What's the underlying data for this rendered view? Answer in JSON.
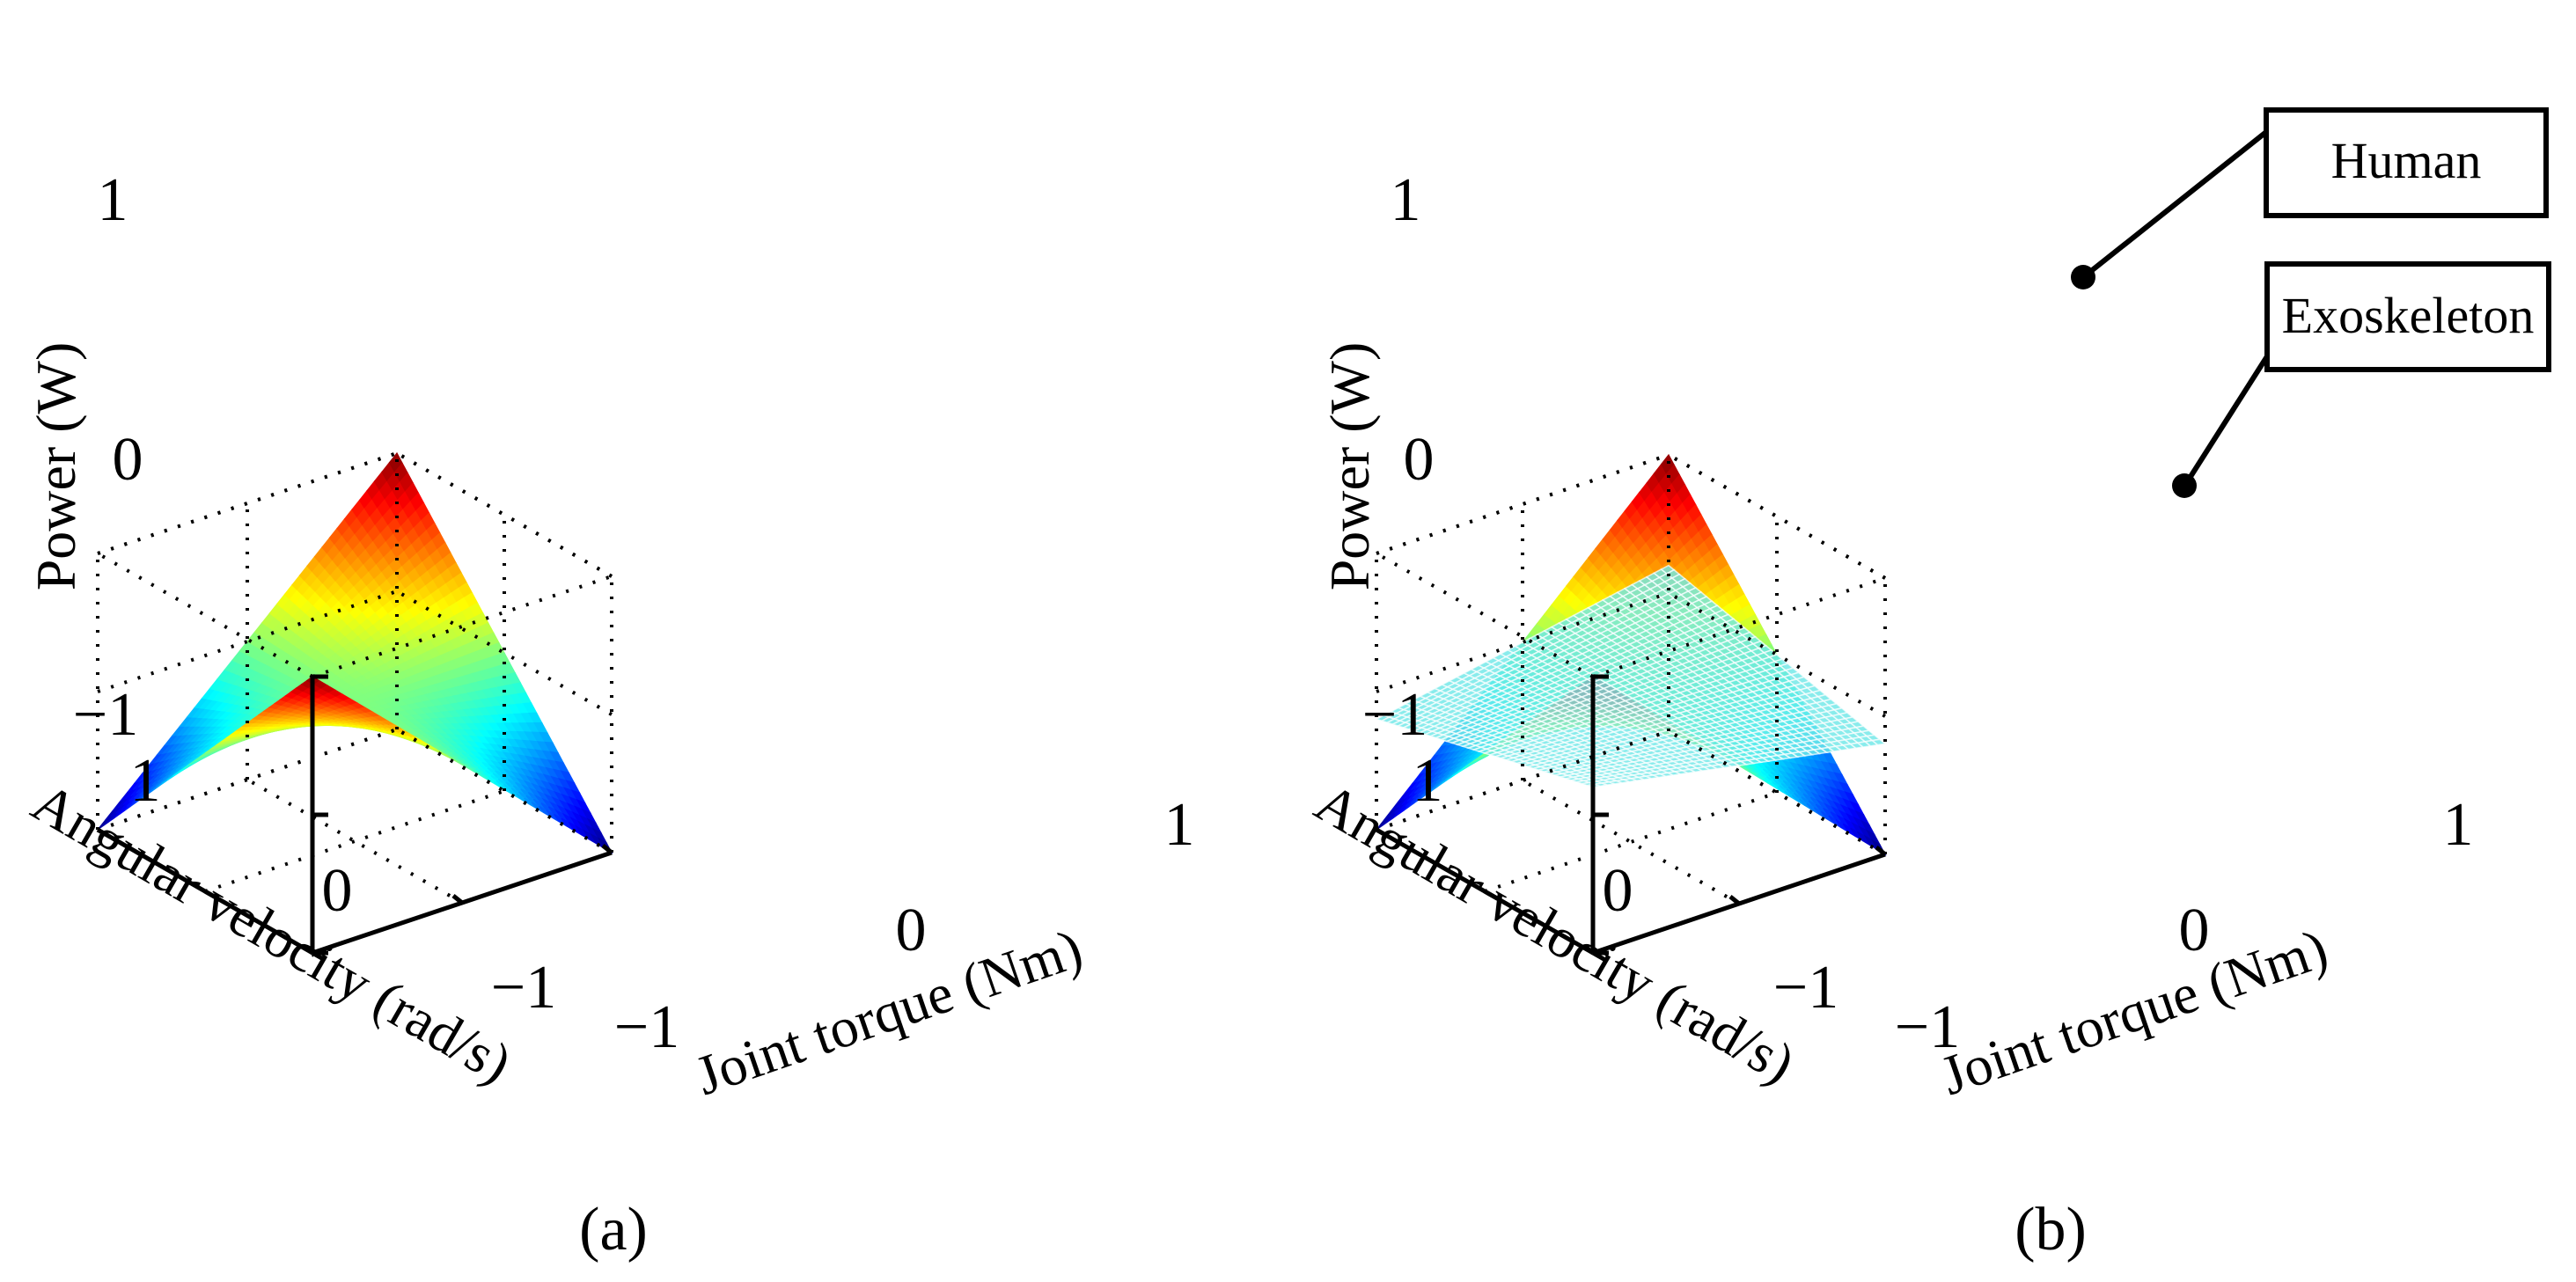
{
  "chart_data": [
    {
      "panel": "a",
      "caption": "(a)",
      "type": "surface3d",
      "function": "power = joint_torque * angular_velocity",
      "x": {
        "label": "Joint torque (Nm)",
        "range": [
          -1,
          1
        ],
        "ticks": [
          "−1",
          "0",
          "1"
        ]
      },
      "y": {
        "label": "Angular velocity (rad/s)",
        "range": [
          -1,
          1
        ],
        "ticks": [
          "−1",
          "0",
          "1"
        ]
      },
      "z": {
        "label": "Power (W)",
        "range": [
          -1,
          1
        ],
        "ticks": [
          "−1",
          "0",
          "1"
        ]
      },
      "series": [
        {
          "name": "",
          "style": "surface",
          "colormap": "jet",
          "scale": 1.0
        }
      ],
      "grid": true
    },
    {
      "panel": "b",
      "caption": "(b)",
      "type": "surface3d",
      "function": "power = joint_torque * angular_velocity",
      "x": {
        "label": "Joint torque (Nm)",
        "range": [
          -1,
          1
        ],
        "ticks": [
          "−1",
          "0",
          "1"
        ]
      },
      "y": {
        "label": "Angular velocity (rad/s)",
        "range": [
          -1,
          1
        ],
        "ticks": [
          "−1",
          "0",
          "1"
        ]
      },
      "z": {
        "label": "Power (W)",
        "range": [
          -1,
          1
        ],
        "ticks": [
          "−1",
          "0",
          "1"
        ]
      },
      "series": [
        {
          "name": "Human",
          "style": "surface",
          "colormap": "jet",
          "scale": 1.0
        },
        {
          "name": "Exoskeleton",
          "style": "mesh",
          "color": "#6fe8e8",
          "scale": 0.2
        }
      ],
      "grid": true
    }
  ]
}
